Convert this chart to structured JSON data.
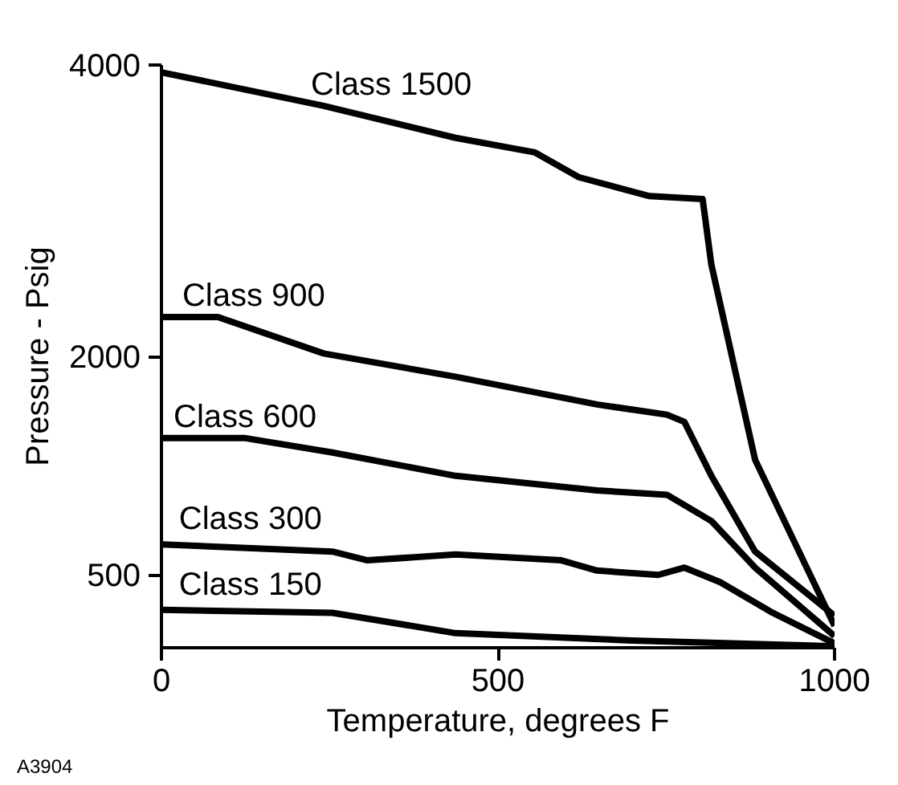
{
  "chart_data": {
    "type": "line",
    "xlabel": "Temperature, degrees F",
    "ylabel": "Pressure - Psig",
    "xlim": [
      0,
      1000
    ],
    "ylim": [
      0,
      4000
    ],
    "xticks": [
      0,
      500,
      1000
    ],
    "yticks": [
      500,
      2000,
      4000
    ],
    "grid": false,
    "marker": "none",
    "line_style": "solid",
    "series": [
      {
        "color": "#000000",
        "x": [
          0,
          241,
          437,
          555,
          620,
          725,
          804,
          817,
          882,
          1000
        ],
        "values": [
          3950,
          3720,
          3500,
          3400,
          3230,
          3100,
          3080,
          2630,
          1290,
          150
        ]
      },
      {
        "color": "#000000",
        "x": [
          0,
          84,
          241,
          437,
          647,
          751,
          777,
          817,
          882,
          1000
        ],
        "values": [
          2270,
          2270,
          2020,
          1860,
          1670,
          1600,
          1550,
          1180,
          660,
          220
        ]
      },
      {
        "color": "#000000",
        "x": [
          0,
          123,
          254,
          437,
          647,
          751,
          817,
          882,
          1000
        ],
        "values": [
          1440,
          1440,
          1340,
          1180,
          1080,
          1050,
          870,
          550,
          80
        ]
      },
      {
        "color": "#000000",
        "x": [
          0,
          254,
          306,
          437,
          594,
          647,
          738,
          777,
          830,
          908,
          1000
        ],
        "values": [
          710,
          660,
          600,
          640,
          600,
          530,
          500,
          550,
          450,
          240,
          30
        ]
      },
      {
        "color": "#000000",
        "x": [
          0,
          254,
          437,
          699,
          1000
        ],
        "values": [
          260,
          240,
          100,
          50,
          10
        ]
      }
    ],
    "annotations": [
      {
        "text": "Class 1500",
        "x": 222,
        "y": 3740
      },
      {
        "text": "Class 900",
        "x": 31,
        "y": 2290
      },
      {
        "text": "Class 600",
        "x": 18,
        "y": 1460
      },
      {
        "text": "Class 300",
        "x": 26,
        "y": 760
      },
      {
        "text": "Class 150",
        "x": 26,
        "y": 310
      },
      "A3904"
    ]
  }
}
